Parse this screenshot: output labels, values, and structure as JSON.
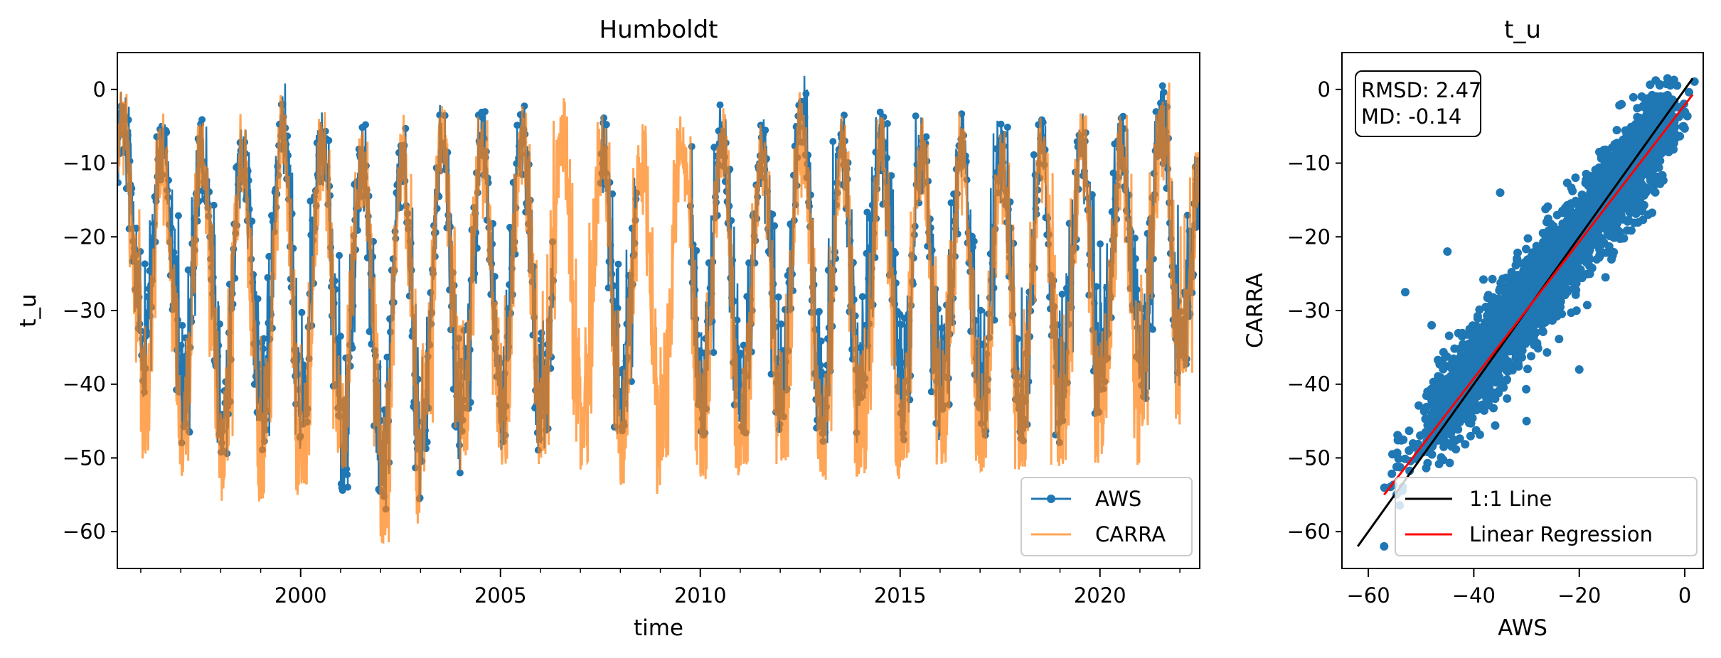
{
  "chart_data": [
    {
      "type": "line",
      "title": "Humboldt",
      "xlabel": "time",
      "ylabel": "t_u",
      "xlim": [
        "1995-06-01",
        "2022-07-01"
      ],
      "ylim": [
        -65,
        5
      ],
      "x_ticks": [
        {
          "date": "2000-01-01",
          "label": "2000"
        },
        {
          "date": "2005-01-01",
          "label": "2005"
        },
        {
          "date": "2010-01-01",
          "label": "2010"
        },
        {
          "date": "2015-01-01",
          "label": "2015"
        },
        {
          "date": "2020-01-01",
          "label": "2020"
        }
      ],
      "y_ticks": [
        0,
        -10,
        -20,
        -30,
        -40,
        -50,
        -60
      ],
      "y_tick_labels": [
        "0",
        "−10",
        "−20",
        "−30",
        "−40",
        "−50",
        "−60"
      ],
      "legend": {
        "position": "lower right",
        "entries": [
          "AWS",
          "CARRA"
        ]
      },
      "series": [
        {
          "name": "AWS",
          "color": "#1f77b4",
          "style": "line with dot markers",
          "gaps": [
            [
              "2006-05-01",
              "2007-07-01"
            ],
            [
              "2008-06-01",
              "2009-10-01"
            ]
          ],
          "annual_summer_max": [
            0,
            -3,
            -4,
            -3,
            1,
            -3,
            -4,
            -3,
            -2,
            -3,
            -2,
            -6,
            -3,
            -4,
            -3,
            -2,
            -4,
            2,
            -3,
            -3,
            -3,
            -3,
            -4,
            -3,
            -3,
            -3,
            1,
            -8
          ],
          "annual_winter_min": [
            -37,
            -42,
            -48,
            -50,
            -49,
            -46,
            -55,
            -57,
            -53,
            -47,
            -49,
            -49,
            -47,
            -47,
            -44,
            -47,
            -47,
            -46,
            -48,
            -42,
            -48,
            -44,
            -47,
            -48,
            -45,
            -41,
            -42,
            -38
          ]
        },
        {
          "name": "CARRA",
          "color": "#ff7f0e",
          "style": "line",
          "annual_summer_max": [
            0,
            -3,
            -4,
            -3,
            1,
            -3,
            -4,
            -3,
            -2,
            -3,
            -2,
            -1,
            -3,
            -4,
            -1,
            -2,
            -4,
            1,
            -3,
            -3,
            -3,
            -3,
            -4,
            -3,
            -3,
            -3,
            1,
            -8
          ],
          "annual_winter_min": [
            -38,
            -52,
            -53,
            -56,
            -56,
            -54,
            -52,
            -62,
            -52,
            -50,
            -51,
            -51,
            -52,
            -55,
            -51,
            -53,
            -52,
            -51,
            -53,
            -53,
            -51,
            -51,
            -53,
            -52,
            -51,
            -51,
            -46,
            -39
          ]
        }
      ]
    },
    {
      "type": "scatter",
      "title": "t_u",
      "xlabel": "AWS",
      "ylabel": "CARRA",
      "xlim": [
        -65,
        3.5
      ],
      "ylim": [
        -65,
        5
      ],
      "x_ticks": [
        -60,
        -40,
        -20,
        0
      ],
      "x_tick_labels": [
        "−60",
        "−40",
        "−20",
        "0"
      ],
      "y_ticks": [
        0,
        -10,
        -20,
        -30,
        -40,
        -50,
        -60
      ],
      "y_tick_labels": [
        "0",
        "−10",
        "−20",
        "−30",
        "−40",
        "−50",
        "−60"
      ],
      "stats_box": {
        "rmsd": "RMSD: 2.47",
        "md": "MD: -0.14"
      },
      "legend": {
        "position": "lower right",
        "entries": [
          "1:1 Line",
          "Linear Regression"
        ]
      },
      "series": [
        {
          "name": "AWS",
          "color": "#1f77b4",
          "style": "dots",
          "x_range": [
            -58,
            1.5
          ],
          "y_range": [
            -62,
            1.5
          ]
        },
        {
          "name": "1:1 Line",
          "color": "#000000",
          "x": [
            -62,
            1.5
          ],
          "y": [
            -62,
            1.5
          ]
        },
        {
          "name": "Linear Regression",
          "color": "#ff0000",
          "x": [
            -57,
            1.5
          ],
          "y": [
            -55,
            -0.7
          ]
        }
      ]
    }
  ]
}
